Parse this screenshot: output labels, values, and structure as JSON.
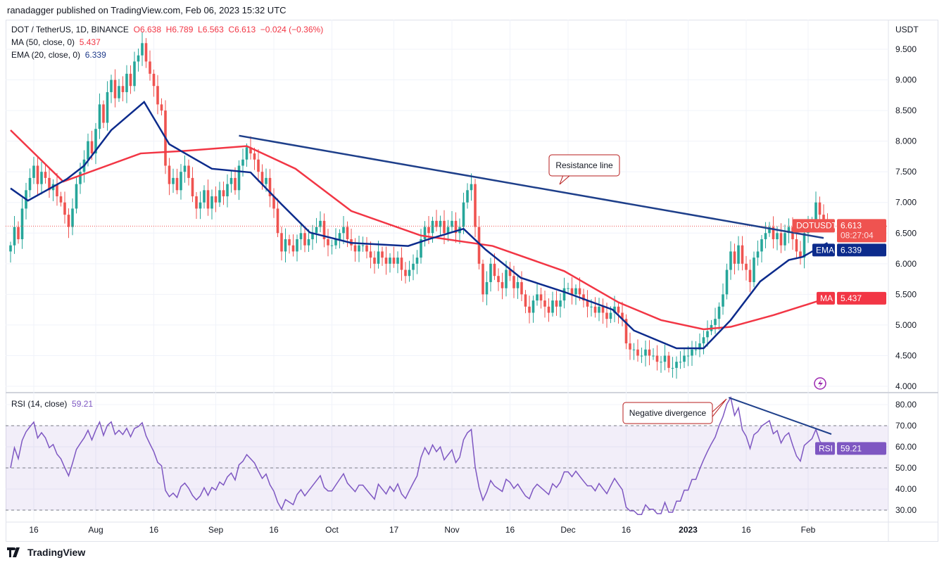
{
  "publisher": "ranadagger published on TradingView.com, Feb 06, 2023 15:32 UTC",
  "legend": {
    "symbol": "DOT / TetherUS, 1D, BINANCE",
    "open": "O6.638",
    "high": "H6.789",
    "low": "L6.563",
    "close": "C6.613",
    "change": "−0.024 (−0.36%)",
    "ma_label": "MA (50, close, 0)",
    "ma_value": "5.437",
    "ema_label": "EMA (20, close, 0)",
    "ema_value": "6.339",
    "rsi_label": "RSI (14, close)",
    "rsi_value": "59.21"
  },
  "axis": {
    "currency": "USDT",
    "price_ticks": [
      "9.500",
      "9.000",
      "8.500",
      "8.000",
      "7.500",
      "7.000",
      "6.500",
      "6.000",
      "5.500",
      "5.000",
      "4.500",
      "4.000"
    ],
    "rsi_ticks": [
      "80.00",
      "70.00",
      "60.00",
      "50.00",
      "40.00",
      "30.00"
    ],
    "date_labels": [
      {
        "day": 6,
        "label": "16"
      },
      {
        "day": 22,
        "label": "Aug"
      },
      {
        "day": 37,
        "label": "16"
      },
      {
        "day": 53,
        "label": "Sep"
      },
      {
        "day": 68,
        "label": "16"
      },
      {
        "day": 83,
        "label": "Oct"
      },
      {
        "day": 99,
        "label": "17"
      },
      {
        "day": 114,
        "label": "Nov"
      },
      {
        "day": 129,
        "label": "16"
      },
      {
        "day": 144,
        "label": "Dec"
      },
      {
        "day": 159,
        "label": "16"
      },
      {
        "day": 175,
        "label": "2023"
      },
      {
        "day": 190,
        "label": "16"
      },
      {
        "day": 206,
        "label": "Feb"
      }
    ]
  },
  "price_tags": {
    "symbol_tag": "DOTUSDT",
    "last_price": "6.613",
    "countdown": "08:27:04",
    "ema_tag": "EMA",
    "ema_value": "6.339",
    "ma_tag": "MA",
    "ma_value": "5.437",
    "rsi_tag": "RSI",
    "rsi_value": "59.21"
  },
  "annotations": {
    "resistance": "Resistance line",
    "divergence": "Negative divergence"
  },
  "branding": "TradingView",
  "colors": {
    "up": "#26a69a",
    "down": "#ef5350",
    "ma": "#f23645",
    "ema": "#0c2b8c",
    "rsi": "#7e57c2",
    "trend": "#1e3f8a"
  },
  "chart_data": {
    "type": "candlestick",
    "title": "DOT / TetherUS, 1D, BINANCE",
    "x_start": "2022-07-10",
    "x_end": "2023-02-06",
    "ylim": [
      4.0,
      9.5
    ],
    "closes": [
      6.3,
      6.6,
      6.4,
      6.9,
      7.2,
      7.4,
      7.6,
      7.3,
      7.5,
      7.4,
      7.2,
      7.3,
      7.1,
      7.0,
      6.8,
      6.6,
      6.9,
      7.3,
      7.5,
      7.7,
      8.0,
      7.8,
      8.2,
      8.6,
      8.3,
      8.8,
      9.0,
      8.7,
      8.9,
      8.8,
      9.1,
      8.9,
      9.3,
      9.4,
      9.6,
      9.3,
      9.1,
      8.9,
      8.6,
      8.5,
      7.6,
      7.3,
      7.4,
      7.2,
      7.5,
      7.6,
      7.4,
      7.1,
      6.9,
      7.0,
      7.2,
      6.9,
      7.1,
      7.0,
      7.2,
      7.1,
      7.3,
      7.4,
      7.2,
      7.6,
      7.7,
      7.9,
      7.8,
      7.7,
      7.5,
      7.3,
      7.4,
      7.1,
      6.9,
      6.5,
      6.2,
      6.4,
      6.3,
      6.2,
      6.4,
      6.5,
      6.3,
      6.4,
      6.5,
      6.6,
      6.7,
      6.4,
      6.3,
      6.3,
      6.4,
      6.5,
      6.6,
      6.4,
      6.3,
      6.2,
      6.3,
      6.3,
      6.2,
      6.1,
      6.0,
      6.2,
      6.1,
      6.0,
      6.1,
      6.0,
      6.1,
      5.9,
      5.8,
      5.9,
      6.0,
      6.1,
      6.4,
      6.6,
      6.5,
      6.7,
      6.6,
      6.7,
      6.5,
      6.6,
      6.7,
      6.5,
      6.6,
      7.0,
      7.2,
      7.3,
      6.6,
      6.0,
      5.5,
      5.7,
      6.0,
      5.8,
      5.7,
      5.6,
      5.9,
      5.8,
      5.6,
      5.7,
      5.5,
      5.3,
      5.2,
      5.4,
      5.5,
      5.4,
      5.3,
      5.2,
      5.4,
      5.3,
      5.4,
      5.6,
      5.6,
      5.5,
      5.6,
      5.5,
      5.4,
      5.3,
      5.3,
      5.2,
      5.3,
      5.2,
      5.1,
      5.2,
      5.3,
      5.2,
      5.1,
      4.7,
      4.6,
      4.6,
      4.5,
      4.5,
      4.6,
      4.5,
      4.5,
      4.4,
      4.4,
      4.5,
      4.3,
      4.3,
      4.4,
      4.4,
      4.5,
      4.5,
      4.6,
      4.6,
      4.7,
      4.8,
      4.9,
      5.0,
      5.1,
      5.3,
      5.5,
      5.9,
      6.2,
      6.0,
      6.3,
      6.0,
      5.9,
      5.7,
      6.1,
      6.2,
      6.4,
      6.5,
      6.6,
      6.4,
      6.5,
      6.3,
      6.5,
      6.6,
      6.4,
      6.2,
      6.1,
      6.5,
      6.6,
      6.7,
      7.0,
      6.8,
      6.7,
      6.613
    ],
    "ma50": [
      [
        0,
        8.18
      ],
      [
        13.6,
        7.34
      ],
      [
        33.6,
        7.8
      ],
      [
        44.5,
        7.84
      ],
      [
        61,
        7.92
      ],
      [
        73.6,
        7.55
      ],
      [
        88,
        6.86
      ],
      [
        106,
        6.46
      ],
      [
        124.5,
        6.29
      ],
      [
        143,
        5.88
      ],
      [
        157,
        5.37
      ],
      [
        168,
        5.08
      ],
      [
        179,
        4.93
      ],
      [
        186,
        4.97
      ],
      [
        197,
        5.16
      ],
      [
        211,
        5.44
      ]
    ],
    "ema20": [
      [
        0,
        7.23
      ],
      [
        4.5,
        7.03
      ],
      [
        14.5,
        7.38
      ],
      [
        19,
        7.6
      ],
      [
        26,
        8.18
      ],
      [
        34.5,
        8.64
      ],
      [
        41,
        7.95
      ],
      [
        52,
        7.55
      ],
      [
        62,
        7.49
      ],
      [
        70,
        6.97
      ],
      [
        77.3,
        6.51
      ],
      [
        88,
        6.34
      ],
      [
        102.7,
        6.29
      ],
      [
        108,
        6.4
      ],
      [
        117,
        6.57
      ],
      [
        122.7,
        6.23
      ],
      [
        131.8,
        5.77
      ],
      [
        143,
        5.54
      ],
      [
        155.5,
        5.25
      ],
      [
        161,
        4.91
      ],
      [
        172,
        4.62
      ],
      [
        179,
        4.62
      ],
      [
        186,
        5.08
      ],
      [
        193.6,
        5.71
      ],
      [
        201,
        6.06
      ],
      [
        204.5,
        6.11
      ],
      [
        211,
        6.34
      ]
    ],
    "resistance_line": [
      [
        59,
        8.09
      ],
      [
        210,
        6.42
      ]
    ],
    "rsi_divergence_line": [
      [
        185.5,
        83.3
      ],
      [
        212,
        66
      ]
    ],
    "rsi_ylim": [
      26,
      86
    ],
    "rsi_levels": [
      70,
      50,
      30
    ]
  }
}
